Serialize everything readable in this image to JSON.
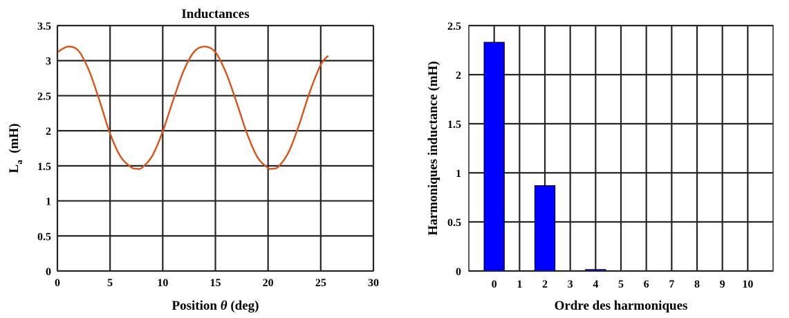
{
  "chart_data": [
    {
      "type": "line",
      "title": "Inductances",
      "xlabel": "Position θ (deg)",
      "xlabel_parts": [
        "Position ",
        "θ",
        " (deg)"
      ],
      "ylabel": "La (mH)",
      "ylabel_parts": [
        "L",
        "a",
        "  (mH)"
      ],
      "xlim": [
        0,
        30
      ],
      "ylim": [
        0,
        3.5
      ],
      "xticks": [
        0,
        5,
        10,
        15,
        20,
        25,
        30
      ],
      "yticks": [
        0,
        0.5,
        1,
        1.5,
        2,
        2.5,
        3,
        3.5
      ],
      "xtick_labels": [
        "0",
        "5",
        "10",
        "15",
        "20",
        "25",
        "30"
      ],
      "ytick_labels": [
        "0",
        "0.5",
        "1",
        "1.5",
        "2",
        "2.5",
        "3",
        "3.5"
      ],
      "grid": true,
      "series": [
        {
          "color": "#d95319",
          "x": [
            0,
            1,
            2,
            3,
            4,
            5,
            6,
            7,
            7.5,
            8,
            9,
            10,
            11,
            12,
            13,
            14,
            15,
            16,
            17,
            18,
            19,
            20,
            20.4,
            21,
            22,
            23,
            24,
            25,
            25.7
          ],
          "y": [
            3.12,
            3.2,
            3.14,
            2.86,
            2.43,
            1.96,
            1.63,
            1.48,
            1.46,
            1.47,
            1.64,
            1.99,
            2.44,
            2.86,
            3.13,
            3.2,
            3.12,
            2.83,
            2.41,
            1.96,
            1.62,
            1.47,
            1.46,
            1.49,
            1.71,
            2.11,
            2.57,
            2.94,
            3.07
          ]
        }
      ]
    },
    {
      "type": "bar",
      "title": "",
      "xlabel": "Ordre des harmoniques",
      "ylabel": "Harmoniques inductance (mH)",
      "categories": [
        "0",
        "1",
        "2",
        "3",
        "4",
        "5",
        "6",
        "7",
        "8",
        "9",
        "10"
      ],
      "values": [
        2.33,
        0,
        0.87,
        0,
        0.015,
        0,
        0,
        0,
        0,
        0,
        0
      ],
      "xlim": [
        -1,
        11
      ],
      "ylim": [
        0,
        2.5
      ],
      "yticks": [
        0,
        0.5,
        1,
        1.5,
        2,
        2.5
      ],
      "ytick_labels": [
        "0",
        "0.5",
        "1",
        "1.5",
        "2",
        "2.5"
      ],
      "grid": true,
      "bar_color": "#0000ff"
    }
  ]
}
